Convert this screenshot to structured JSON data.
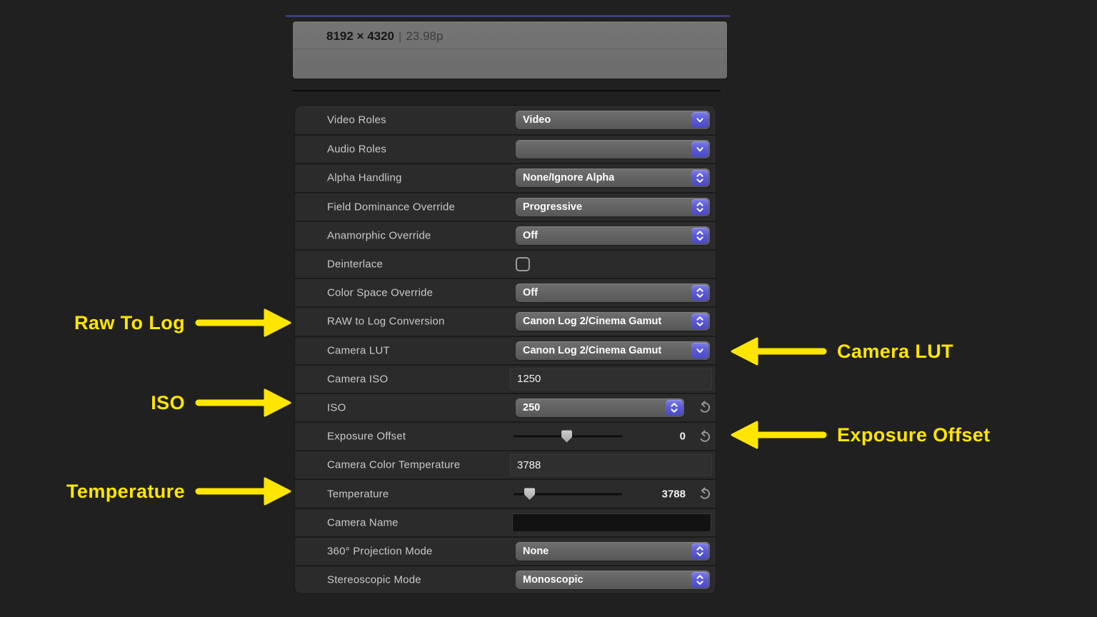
{
  "colors": {
    "accent_blue": "#5c5cd6",
    "annotation_yellow": "#ffe600",
    "panel_bg": "#2b2b2b",
    "page_bg": "#202020"
  },
  "header": {
    "resolution": "8192 × 4320",
    "separator": "|",
    "framerate": "23.98p"
  },
  "inspector": {
    "rows": [
      {
        "label": "Video Roles",
        "type": "combo",
        "value": "Video"
      },
      {
        "label": "Audio Roles",
        "type": "combo",
        "value": ""
      },
      {
        "label": "Alpha Handling",
        "type": "popup",
        "value": "None/Ignore Alpha"
      },
      {
        "label": "Field Dominance Override",
        "type": "popup",
        "value": "Progressive"
      },
      {
        "label": "Anamorphic Override",
        "type": "popup",
        "value": "Off"
      },
      {
        "label": "Deinterlace",
        "type": "checkbox",
        "checked": false
      },
      {
        "label": "Color Space Override",
        "type": "popup",
        "value": "Off"
      },
      {
        "label": "RAW to Log Conversion",
        "type": "popup",
        "value": "Canon Log 2/Cinema Gamut"
      },
      {
        "label": "Camera LUT",
        "type": "combo",
        "value": "Canon Log 2/Cinema Gamut"
      },
      {
        "label": "Camera ISO",
        "type": "value",
        "value": "1250"
      },
      {
        "label": "ISO",
        "type": "popup_reset",
        "value": "250"
      },
      {
        "label": "Exposure Offset",
        "type": "slider",
        "value": "0",
        "slider_pos": 0.49
      },
      {
        "label": "Camera Color Temperature",
        "type": "value",
        "value": "3788"
      },
      {
        "label": "Temperature",
        "type": "slider",
        "value": "3788",
        "slider_pos": 0.11
      },
      {
        "label": "Camera Name",
        "type": "textinput",
        "value": ""
      },
      {
        "label": "360° Projection Mode",
        "type": "popup",
        "value": "None"
      },
      {
        "label": "Stereoscopic Mode",
        "type": "popup",
        "value": "Monoscopic"
      }
    ]
  },
  "annotations": {
    "left": [
      {
        "label": "Raw To Log"
      },
      {
        "label": "ISO"
      },
      {
        "label": "Temperature"
      }
    ],
    "right": [
      {
        "label": "Camera LUT"
      },
      {
        "label": "Exposure Offset"
      }
    ]
  }
}
